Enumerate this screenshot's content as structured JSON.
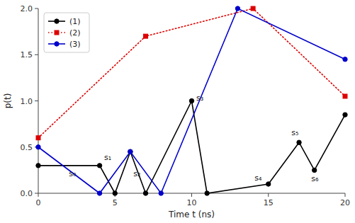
{
  "chart_data": {
    "type": "line",
    "x_label": "Time t (ns)",
    "y_label": "p(t)",
    "xlim": [
      0,
      20
    ],
    "ylim": [
      0,
      2
    ],
    "xticks": [
      0,
      5,
      10,
      15,
      20
    ],
    "yticks": [
      {
        "value": 0,
        "label": "0.0"
      },
      0.5,
      {
        "value": 1,
        "label": "1.0"
      },
      1.5,
      {
        "value": 2,
        "label": "2.0"
      }
    ],
    "grid": false,
    "legend": "upper left",
    "series": [
      {
        "name": "(1)",
        "color": "#000000",
        "marker": "circle",
        "line_style": "solid",
        "x": [
          0,
          4,
          5,
          6,
          7,
          10,
          11,
          15,
          17,
          18,
          20
        ],
        "values": [
          0.3,
          0.3,
          0.0,
          0.45,
          0.0,
          1.0,
          0.0,
          0.1,
          0.55,
          0.25,
          0.85
        ]
      },
      {
        "name": "(2)",
        "color": "#dd0000",
        "marker": "square",
        "line_style": "dotted",
        "x": [
          0,
          7,
          14,
          20
        ],
        "values": [
          0.6,
          1.7,
          2.0,
          1.05
        ]
      },
      {
        "name": "(3)",
        "color": "#0000cc",
        "marker": "circle",
        "line_style": "solid",
        "x": [
          0,
          4,
          6,
          8,
          13,
          20
        ],
        "values": [
          0.5,
          0.0,
          0.45,
          0.0,
          2.0,
          1.45
        ]
      }
    ],
    "annotations": [
      {
        "text": "s₀",
        "x": 2.0,
        "y": 0.18
      },
      {
        "text": "s₁",
        "x": 4.3,
        "y": 0.35
      },
      {
        "text": "s₂",
        "x": 6.2,
        "y": 0.18
      },
      {
        "text": "s₃",
        "x": 10.3,
        "y": 1.0
      },
      {
        "text": "s₄",
        "x": 14.1,
        "y": 0.13
      },
      {
        "text": "s₅",
        "x": 16.5,
        "y": 0.62
      },
      {
        "text": "s₆",
        "x": 17.8,
        "y": 0.12
      }
    ]
  }
}
